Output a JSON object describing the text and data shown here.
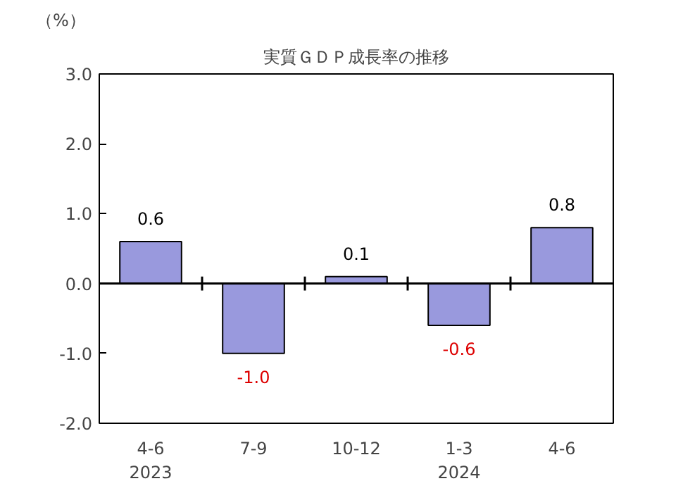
{
  "chart_data": {
    "type": "bar",
    "title": "実質ＧＤＰ成長率の推移",
    "ylabel": "（%）",
    "categories": [
      "4-6\n2023",
      "7-9",
      "10-12",
      "1-3\n2024",
      "4-6"
    ],
    "values": [
      0.6,
      -1.0,
      0.1,
      -0.6,
      0.8
    ],
    "color": "#9999dd",
    "ylim": [
      -2.0,
      3.0
    ],
    "yticks": [
      {
        "value": -2,
        "label": "-2.0"
      },
      {
        "value": -1,
        "label": "-1.0"
      },
      {
        "value": 0,
        "label": "0.0"
      },
      {
        "value": 1,
        "label": "1.0"
      },
      {
        "value": 2,
        "label": "2.0"
      },
      {
        "value": 3,
        "label": "3.0"
      }
    ],
    "value_labels": [
      "0.6",
      "-1.0",
      "0.1",
      "-0.6",
      "0.8"
    ]
  }
}
